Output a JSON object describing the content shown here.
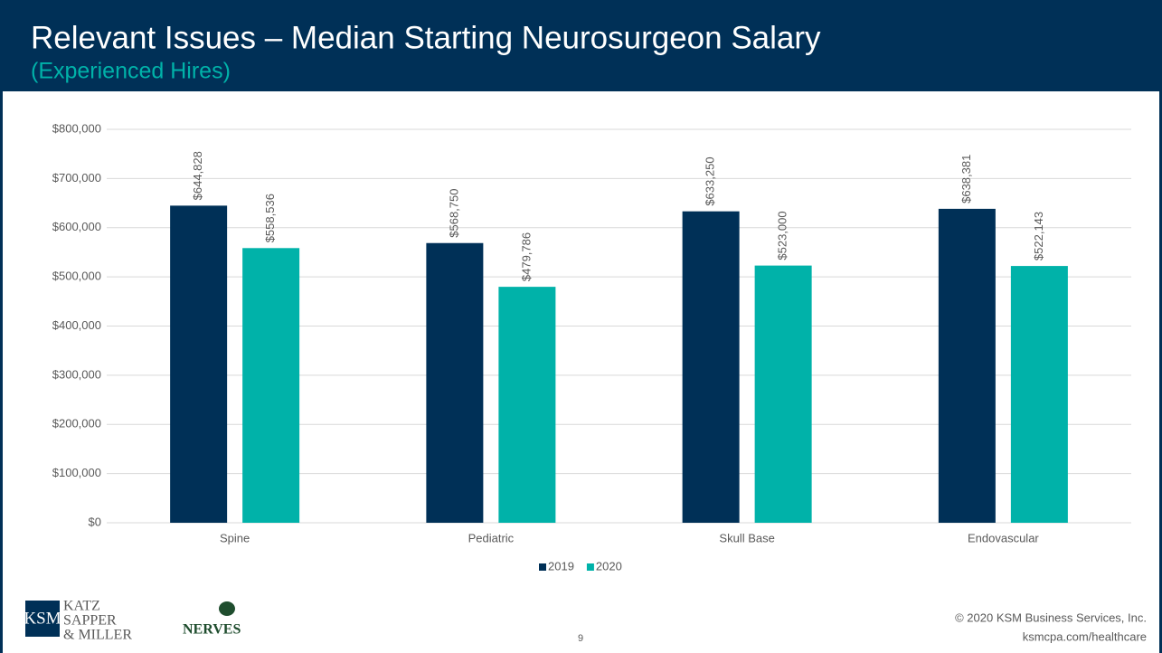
{
  "header": {
    "title": "Relevant Issues – Median Starting Neurosurgeon Salary",
    "subtitle": "(Experienced Hires)"
  },
  "chart_data": {
    "type": "bar",
    "categories": [
      "Spine",
      "Pediatric",
      "Skull Base",
      "Endovascular"
    ],
    "series": [
      {
        "name": "2019",
        "color": "#003057",
        "values": [
          644828,
          568750,
          633250,
          638381
        ],
        "value_labels": [
          "$644,828",
          "$568,750",
          "$633,250",
          "$638,381"
        ]
      },
      {
        "name": "2020",
        "color": "#00b2a9",
        "values": [
          558536,
          479786,
          523000,
          522143
        ],
        "value_labels": [
          "$558,536",
          "$479,786",
          "$523,000",
          "$522,143"
        ]
      }
    ],
    "ylim": [
      0,
      800000
    ],
    "yticks": [
      {
        "value": 0,
        "label": "$0"
      },
      {
        "value": 100000,
        "label": "$100,000"
      },
      {
        "value": 200000,
        "label": "$200,000"
      },
      {
        "value": 300000,
        "label": "$300,000"
      },
      {
        "value": 400000,
        "label": "$400,000"
      },
      {
        "value": 500000,
        "label": "$500,000"
      },
      {
        "value": 600000,
        "label": "$600,000"
      },
      {
        "value": 700000,
        "label": "$700,000"
      },
      {
        "value": 800000,
        "label": "$800,000"
      }
    ],
    "grid": true,
    "legend": "bottom"
  },
  "footer": {
    "logo_mark": "KSM",
    "logo_lines": [
      "KATZ",
      "SAPPER",
      "& MILLER"
    ],
    "partner": "NERVES",
    "page": "9",
    "copyright": "© 2020 KSM Business Services, Inc.",
    "url": "ksmcpa.com/healthcare"
  }
}
